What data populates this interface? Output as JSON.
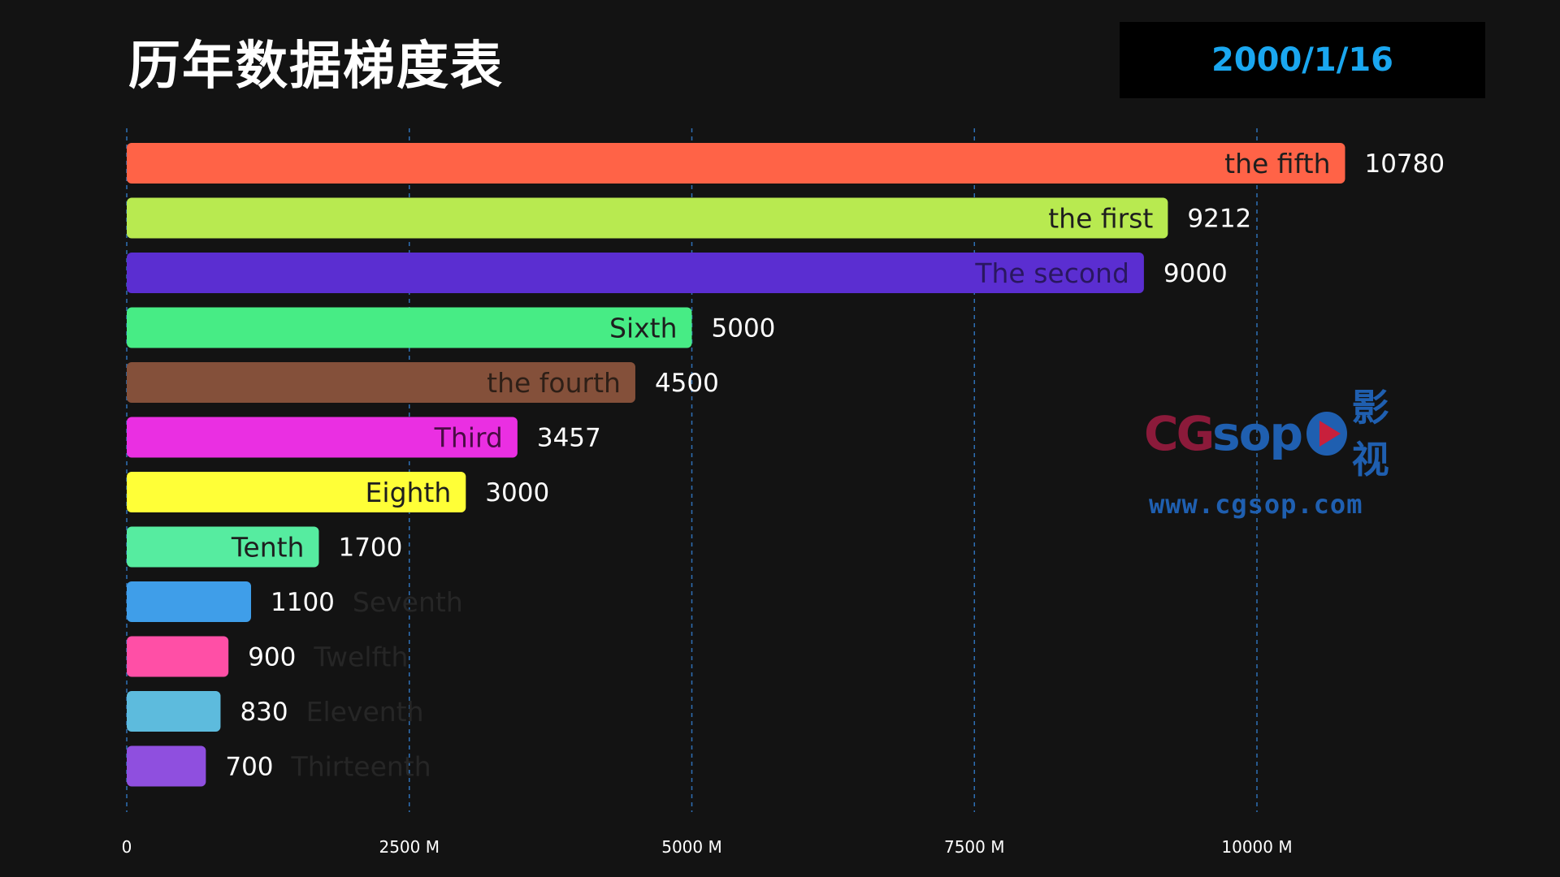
{
  "header": {
    "title": "历年数据梯度表",
    "date": "2000/1/16"
  },
  "watermark": {
    "cg": "CG",
    "sop": "sop",
    "cn": "影视",
    "url": "www.cgsop.com",
    "icon": "play-icon"
  },
  "chart_data": {
    "type": "bar",
    "orientation": "horizontal",
    "xlim": [
      0,
      11500
    ],
    "ticks": [
      0,
      2500,
      5000,
      7500,
      10000
    ],
    "tick_labels": [
      "0",
      "2500 M",
      "5000 M",
      "7500 M",
      "10000 M"
    ],
    "grid": true,
    "series": [
      {
        "name": "the fifth",
        "value": 10780,
        "value_label": "10780",
        "color": "#ff6347",
        "label_color": "#1e1e1e"
      },
      {
        "name": "the first",
        "value": 9212,
        "value_label": "9212",
        "color": "#b8ea50",
        "label_color": "#1e1e1e"
      },
      {
        "name": "The second",
        "value": 9000,
        "value_label": "9000",
        "color": "#5b2ed1",
        "label_color": "#2a1760"
      },
      {
        "name": "Sixth",
        "value": 5000,
        "value_label": "5000",
        "color": "#47ec85",
        "label_color": "#1e1e1e"
      },
      {
        "name": "the fourth",
        "value": 4500,
        "value_label": "4500",
        "color": "#84503a",
        "label_color": "#2e1f17"
      },
      {
        "name": "Third",
        "value": 3457,
        "value_label": "3457",
        "color": "#ea2fe2",
        "label_color": "#4a0c44"
      },
      {
        "name": "Eighth",
        "value": 3000,
        "value_label": "3000",
        "color": "#ffff37",
        "label_color": "#1e1e1e"
      },
      {
        "name": "Tenth",
        "value": 1700,
        "value_label": "1700",
        "color": "#56eca0",
        "label_color": "#1e1e1e"
      },
      {
        "name": "Seventh",
        "value": 1100,
        "value_label": "1100",
        "color": "#3f9ee9",
        "label_color": "#1a1a1a"
      },
      {
        "name": "Twelfth",
        "value": 900,
        "value_label": "900",
        "color": "#ff4fa6",
        "label_color": "#1a1a1a"
      },
      {
        "name": "Eleventh",
        "value": 830,
        "value_label": "830",
        "color": "#5dbbdd",
        "label_color": "#1a1a1a"
      },
      {
        "name": "Thirteenth",
        "value": 700,
        "value_label": "700",
        "color": "#8f4fdf",
        "label_color": "#1a1a1a"
      }
    ]
  }
}
